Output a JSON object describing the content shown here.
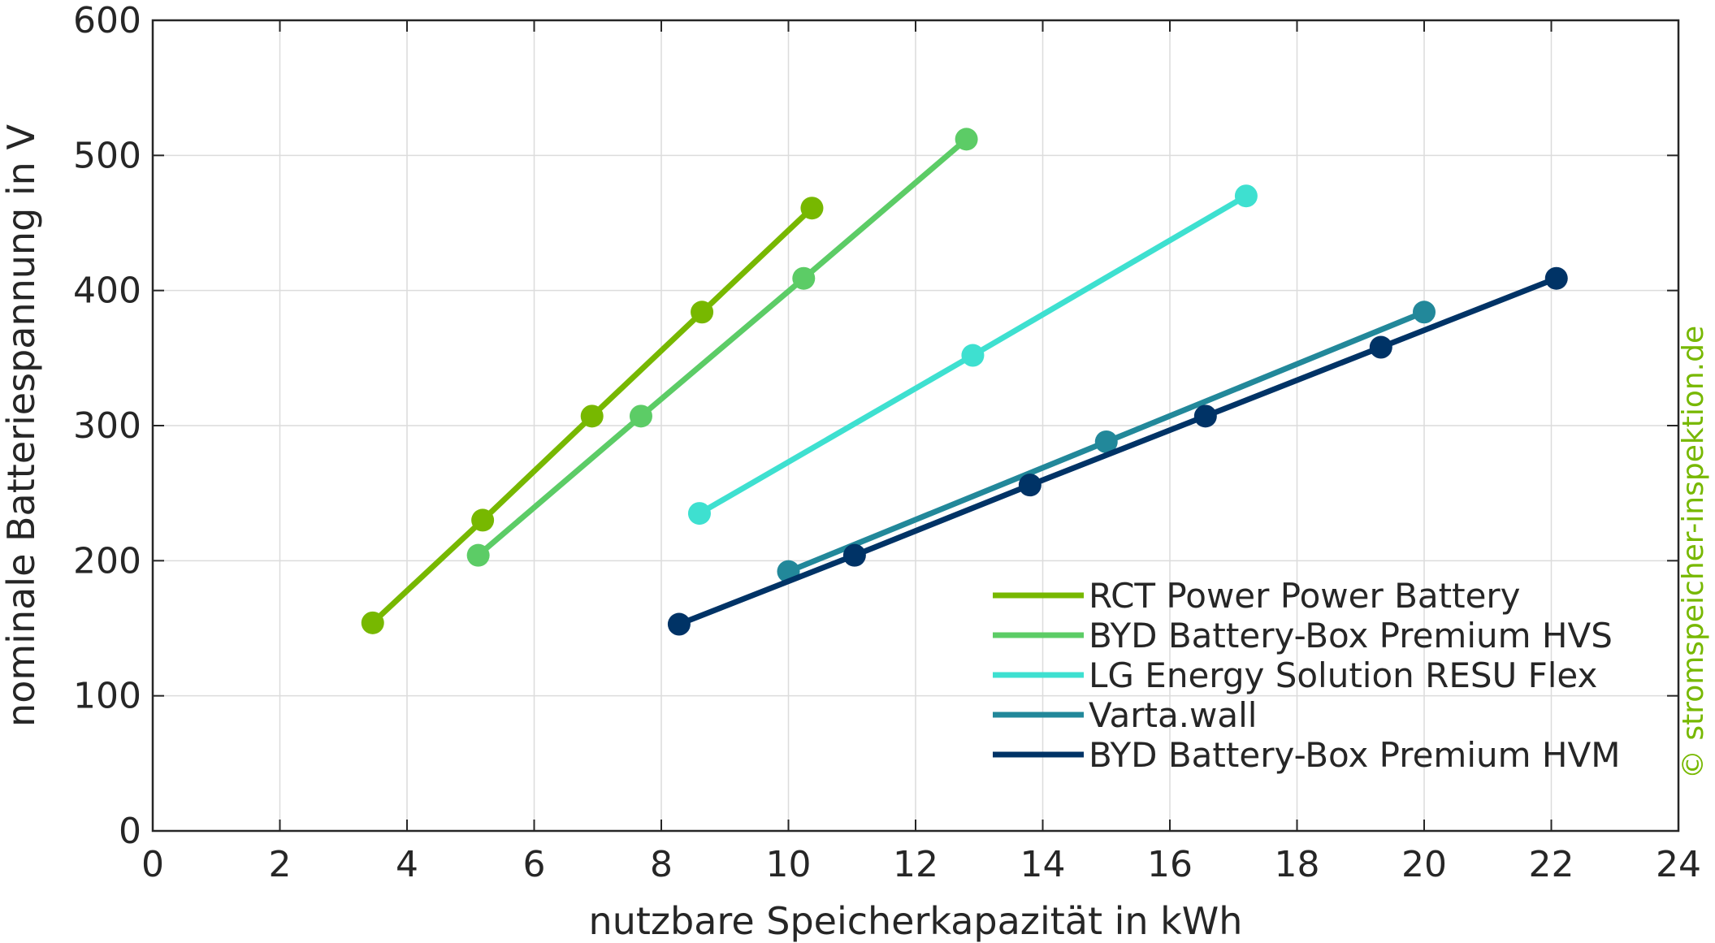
{
  "chart_data": {
    "type": "line",
    "title": "",
    "xlabel": "nutzbare Speicherkapazität in kWh",
    "ylabel": "nominale Batteriespannung in V",
    "xlim": [
      0,
      24
    ],
    "ylim": [
      0,
      600
    ],
    "xticks": [
      0,
      2,
      4,
      6,
      8,
      10,
      12,
      14,
      16,
      18,
      20,
      22,
      24
    ],
    "yticks": [
      0,
      100,
      200,
      300,
      400,
      500,
      600
    ],
    "grid": true,
    "legend_position": "bottom-right",
    "series": [
      {
        "name": "RCT Power Power Battery",
        "color": "#77b800",
        "x": [
          3.46,
          5.19,
          6.91,
          8.64,
          10.37
        ],
        "y": [
          154,
          230,
          307,
          384,
          461
        ]
      },
      {
        "name": "BYD Battery-Box Premium HVS",
        "color": "#5ccc66",
        "x": [
          5.12,
          7.68,
          10.24,
          12.8
        ],
        "y": [
          204,
          307,
          409,
          512
        ]
      },
      {
        "name": "LG Energy Solution RESU Flex",
        "color": "#3ee0d0",
        "x": [
          8.6,
          12.9,
          17.2
        ],
        "y": [
          235,
          352,
          470
        ]
      },
      {
        "name": "Varta.wall",
        "color": "#22889a",
        "x": [
          10,
          15,
          20
        ],
        "y": [
          192,
          288,
          384
        ]
      },
      {
        "name": "BYD Battery-Box Premium HVM",
        "color": "#003366",
        "x": [
          8.28,
          11.04,
          13.8,
          16.56,
          19.32,
          22.08
        ],
        "y": [
          153,
          204,
          256,
          307,
          358,
          409
        ]
      }
    ]
  },
  "watermark": {
    "text": "© stromspeicher-inspektion.de",
    "color": "#77b800"
  }
}
